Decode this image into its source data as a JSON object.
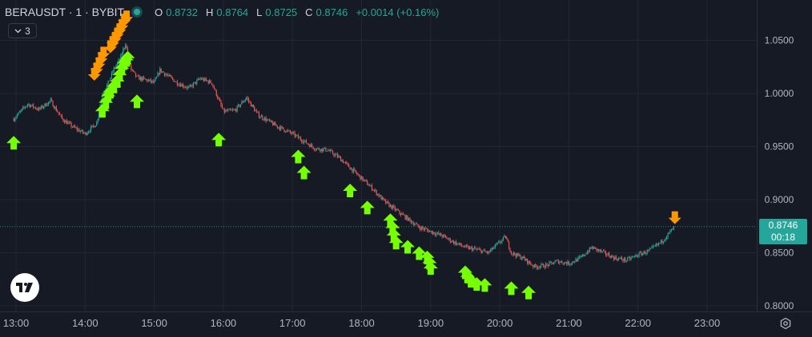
{
  "legend": {
    "symbol": "BERAUSDT · 1 · BYBIT",
    "open_label": "O",
    "open": "0.8732",
    "high_label": "H",
    "high": "0.8764",
    "low_label": "L",
    "low": "0.8725",
    "close_label": "C",
    "close": "0.8746",
    "change": "+0.0014 (+0.16%)"
  },
  "indicators_collapse": {
    "icon": "chevron-down-icon",
    "count": "3"
  },
  "last_price": {
    "price": "0.8746",
    "countdown": "00:18",
    "color": "#26a69a"
  },
  "colors": {
    "up": "#26a69a",
    "down": "#ef5350",
    "buy_arrow": "#76ff03",
    "sell_arrow": "#ff9800",
    "background": "#161a25"
  },
  "chart_data": {
    "type": "candlestick",
    "x_axis": {
      "ticks": [
        "13:00",
        "14:00",
        "15:00",
        "16:00",
        "17:00",
        "18:00",
        "19:00",
        "20:00",
        "21:00",
        "22:00",
        "23:00"
      ]
    },
    "y_axis": {
      "ticks": [
        "1.0500",
        "1.0000",
        "0.9500",
        "0.9000",
        "0.8500",
        "0.8000"
      ],
      "range": [
        0.7985,
        1.068
      ]
    },
    "grid": true,
    "price_path": [
      [
        "12:58",
        0.976
      ],
      [
        "13:10",
        0.99
      ],
      [
        "13:20",
        0.985
      ],
      [
        "13:30",
        0.993
      ],
      [
        "13:40",
        0.976
      ],
      [
        "13:50",
        0.968
      ],
      [
        "14:00",
        0.962
      ],
      [
        "14:10",
        0.972
      ],
      [
        "14:15",
        1.0
      ],
      [
        "14:20",
        1.01
      ],
      [
        "14:25",
        1.023
      ],
      [
        "14:30",
        1.032
      ],
      [
        "14:35",
        1.047
      ],
      [
        "14:40",
        1.022
      ],
      [
        "14:45",
        1.015
      ],
      [
        "14:55",
        1.012
      ],
      [
        "15:00",
        1.01
      ],
      [
        "15:05",
        1.022
      ],
      [
        "15:20",
        1.01
      ],
      [
        "15:30",
        1.005
      ],
      [
        "15:40",
        1.014
      ],
      [
        "15:50",
        1.01
      ],
      [
        "16:00",
        0.983
      ],
      [
        "16:10",
        0.984
      ],
      [
        "16:20",
        0.996
      ],
      [
        "16:30",
        0.98
      ],
      [
        "16:45",
        0.97
      ],
      [
        "17:00",
        0.962
      ],
      [
        "17:10",
        0.955
      ],
      [
        "17:20",
        0.948
      ],
      [
        "17:30",
        0.947
      ],
      [
        "17:40",
        0.94
      ],
      [
        "17:50",
        0.93
      ],
      [
        "18:00",
        0.92
      ],
      [
        "18:10",
        0.91
      ],
      [
        "18:20",
        0.898
      ],
      [
        "18:30",
        0.89
      ],
      [
        "18:40",
        0.882
      ],
      [
        "18:50",
        0.874
      ],
      [
        "19:00",
        0.87
      ],
      [
        "19:10",
        0.866
      ],
      [
        "19:20",
        0.86
      ],
      [
        "19:30",
        0.855
      ],
      [
        "19:40",
        0.853
      ],
      [
        "19:50",
        0.85
      ],
      [
        "20:00",
        0.86
      ],
      [
        "20:05",
        0.865
      ],
      [
        "20:10",
        0.85
      ],
      [
        "20:20",
        0.845
      ],
      [
        "20:30",
        0.837
      ],
      [
        "20:40",
        0.838
      ],
      [
        "20:50",
        0.842
      ],
      [
        "21:00",
        0.84
      ],
      [
        "21:10",
        0.845
      ],
      [
        "21:20",
        0.855
      ],
      [
        "21:30",
        0.85
      ],
      [
        "21:40",
        0.845
      ],
      [
        "21:50",
        0.843
      ],
      [
        "22:00",
        0.848
      ],
      [
        "22:10",
        0.852
      ],
      [
        "22:20",
        0.86
      ],
      [
        "22:25",
        0.866
      ],
      [
        "22:32",
        0.8746
      ]
    ],
    "buy_signals": [
      [
        "12:58",
        0.96
      ],
      [
        "14:15",
        0.99
      ],
      [
        "14:18",
        0.998
      ],
      [
        "14:20",
        1.004
      ],
      [
        "14:22",
        1.008
      ],
      [
        "14:25",
        1.013
      ],
      [
        "14:28",
        1.018
      ],
      [
        "14:30",
        1.024
      ],
      [
        "14:32",
        1.03
      ],
      [
        "14:34",
        1.035
      ],
      [
        "14:36",
        1.038
      ],
      [
        "14:37",
        1.04
      ],
      [
        "14:45",
        0.999
      ],
      [
        "15:56",
        0.963
      ],
      [
        "17:05",
        0.947
      ],
      [
        "17:10",
        0.932
      ],
      [
        "17:50",
        0.915
      ],
      [
        "18:05",
        0.899
      ],
      [
        "18:25",
        0.887
      ],
      [
        "18:27",
        0.88
      ],
      [
        "18:28",
        0.873
      ],
      [
        "18:30",
        0.866
      ],
      [
        "18:40",
        0.862
      ],
      [
        "18:50",
        0.856
      ],
      [
        "18:57",
        0.852
      ],
      [
        "18:59",
        0.847
      ],
      [
        "19:00",
        0.842
      ],
      [
        "19:30",
        0.838
      ],
      [
        "19:32",
        0.834
      ],
      [
        "19:35",
        0.83
      ],
      [
        "19:40",
        0.827
      ],
      [
        "19:47",
        0.826
      ],
      [
        "20:10",
        0.823
      ],
      [
        "20:25",
        0.819
      ]
    ],
    "sell_signals": [
      [
        "14:08",
        1.012
      ],
      [
        "14:10",
        1.017
      ],
      [
        "14:12",
        1.022
      ],
      [
        "14:14",
        1.027
      ],
      [
        "14:16",
        1.032
      ],
      [
        "14:22",
        1.038
      ],
      [
        "14:24",
        1.042
      ],
      [
        "14:26",
        1.046
      ],
      [
        "14:28",
        1.05
      ],
      [
        "14:30",
        1.054
      ],
      [
        "14:32",
        1.058
      ],
      [
        "14:34",
        1.063
      ],
      [
        "14:36",
        1.066
      ],
      [
        "22:32",
        0.877
      ]
    ],
    "last_price_line": 0.8746
  }
}
